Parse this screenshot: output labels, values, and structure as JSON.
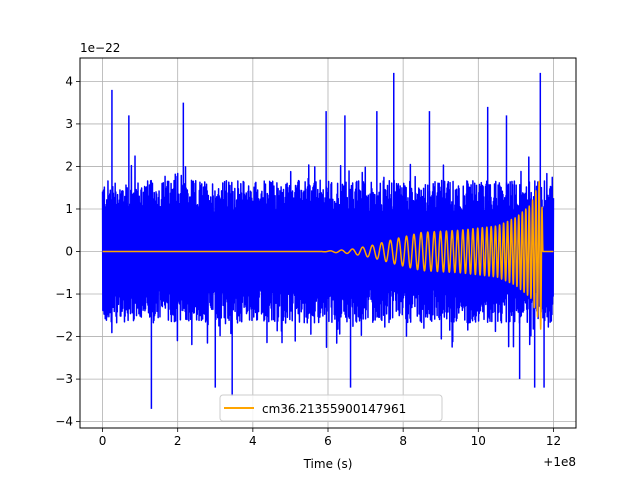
{
  "chart_data": {
    "type": "line",
    "title": "",
    "xlabel": "Time (s)",
    "ylabel": "",
    "x_offset_label": "+1e8",
    "y_scale_label": "1e−22",
    "xlim": [
      -0.6,
      12.6
    ],
    "ylim": [
      -4.15,
      4.55
    ],
    "x_ticks": [
      0,
      2,
      4,
      6,
      8,
      10,
      12
    ],
    "x_tick_labels": [
      "0",
      "2",
      "4",
      "6",
      "8",
      "10",
      "12"
    ],
    "y_ticks": [
      -4,
      -3,
      -2,
      -1,
      0,
      1,
      2,
      3,
      4
    ],
    "y_tick_labels": [
      "−4",
      "−3",
      "−2",
      "−1",
      "0",
      "1",
      "2",
      "3",
      "4"
    ],
    "grid": true,
    "legend": {
      "position": "bottom-center",
      "entries": [
        "cm36.21355900147961"
      ]
    },
    "series": [
      {
        "color": "#0000ff",
        "description": "noisy strain data",
        "x_range": [
          0,
          12
        ],
        "envelope": {
          "typical_abs": 1.6,
          "max": 4.2,
          "min": -3.7
        },
        "peaks": [
          {
            "x": 0.25,
            "y": 3.8
          },
          {
            "x": 0.7,
            "y": 3.2
          },
          {
            "x": 1.3,
            "y": -3.7
          },
          {
            "x": 2.15,
            "y": 3.5
          },
          {
            "x": 3.0,
            "y": -3.2
          },
          {
            "x": 3.45,
            "y": -3.4
          },
          {
            "x": 5.95,
            "y": 3.3
          },
          {
            "x": 6.45,
            "y": 3.2
          },
          {
            "x": 6.6,
            "y": -3.2
          },
          {
            "x": 7.3,
            "y": 3.3
          },
          {
            "x": 7.75,
            "y": 4.2
          },
          {
            "x": 8.7,
            "y": 3.3
          },
          {
            "x": 10.25,
            "y": 3.4
          },
          {
            "x": 10.75,
            "y": 3.2
          },
          {
            "x": 11.1,
            "y": -3.0
          },
          {
            "x": 11.5,
            "y": -3.2
          },
          {
            "x": 11.65,
            "y": 4.2
          },
          {
            "x": 11.75,
            "y": -3.2
          }
        ]
      },
      {
        "name": "cm36.21355900147961",
        "color": "#ffa500",
        "description": "chirp waveform template",
        "x_range": [
          0,
          12
        ],
        "amplitude_points": [
          {
            "x": 0,
            "y": 0.0
          },
          {
            "x": 5.8,
            "y": 0.0
          },
          {
            "x": 6.6,
            "y": 0.05
          },
          {
            "x": 7.2,
            "y": 0.15
          },
          {
            "x": 7.8,
            "y": 0.3
          },
          {
            "x": 8.5,
            "y": 0.45
          },
          {
            "x": 9.5,
            "y": 0.5
          },
          {
            "x": 10.5,
            "y": 0.6
          },
          {
            "x": 11.0,
            "y": 0.8
          },
          {
            "x": 11.4,
            "y": 1.1
          },
          {
            "x": 11.6,
            "y": 1.6
          },
          {
            "x": 11.68,
            "y": 1.9
          },
          {
            "x": 11.72,
            "y": 0.0
          },
          {
            "x": 12.0,
            "y": 0.0
          }
        ]
      }
    ]
  }
}
